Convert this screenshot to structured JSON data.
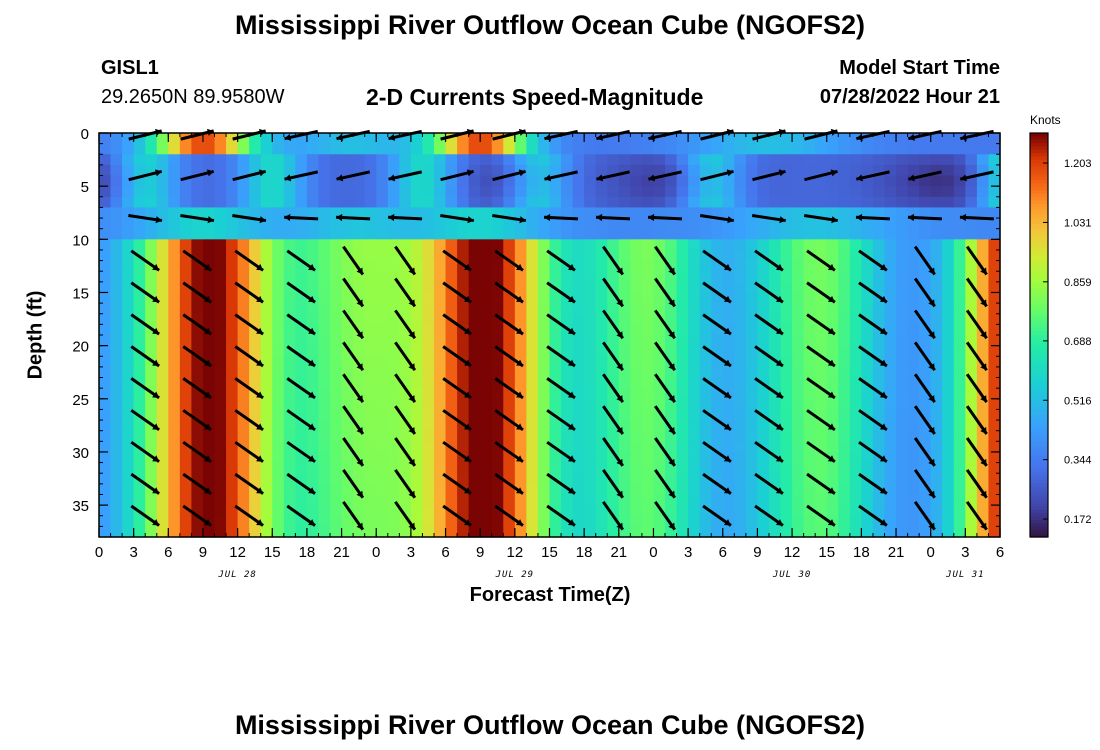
{
  "page": {
    "title": "Mississippi River Outflow Ocean Cube (NGOFS2)",
    "title_bottom": "Mississippi River Outflow Ocean Cube (NGOFS2)"
  },
  "station": {
    "name": "GISL1",
    "coords": "29.2650N  89.9580W"
  },
  "model": {
    "label": "Model Start Time",
    "time": "07/28/2022 Hour 21"
  },
  "chart_data": {
    "type": "heatmap",
    "title": "2-D Currents Speed-Magnitude",
    "xlabel": "Forecast Time(Z)",
    "ylabel": "Depth (ft)",
    "colorbar_label": "Knots",
    "colorbar_ticks": [
      "1.203",
      "1.031",
      "0.859",
      "0.688",
      "0.516",
      "0.344",
      "0.172"
    ],
    "colorbar_values": [
      1.203,
      1.031,
      0.859,
      0.688,
      0.516,
      0.344,
      0.172
    ],
    "vmin": 0.12,
    "vmax": 1.29,
    "x_start_hours": 0,
    "x_end_hours": 78,
    "x_ticks": [
      "0",
      "3",
      "6",
      "9",
      "12",
      "15",
      "18",
      "21",
      "0",
      "3",
      "6",
      "9",
      "12",
      "15",
      "18",
      "21",
      "0",
      "3",
      "6",
      "9",
      "12",
      "15",
      "18",
      "21",
      "0",
      "3",
      "6"
    ],
    "date_labels": [
      {
        "label": "JUL 28",
        "hour": 12
      },
      {
        "label": "JUL 29",
        "hour": 36
      },
      {
        "label": "JUL 30",
        "hour": 60
      },
      {
        "label": "JUL 31",
        "hour": 75
      }
    ],
    "y_ticks": [
      0,
      5,
      10,
      15,
      20,
      25,
      30,
      35
    ],
    "ylim": [
      0,
      38
    ],
    "notes": "Speed magnitude (knots) vs forecast hour and depth; strong ebb maxima near hours 9 and 33 at depth; arrows show current direction."
  },
  "colors": {
    "arrow": "#000000",
    "frame": "#000000"
  }
}
